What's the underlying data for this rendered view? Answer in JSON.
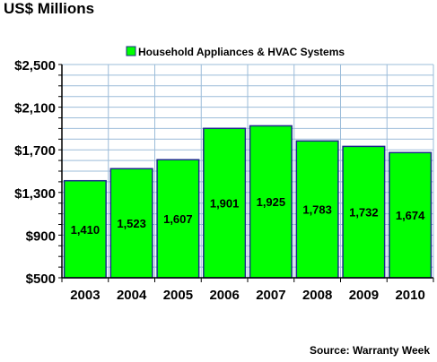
{
  "header": {
    "unit_label": "US$ Millions"
  },
  "footer": {
    "source": "Source: Warranty Week"
  },
  "colors": {
    "bar_fill": "#00ff00",
    "bar_stroke": "#1a2a8a",
    "plot_bg": "#ffffff",
    "grid": "#9bbcd9",
    "axis": "#000000"
  },
  "chart_data": {
    "type": "bar",
    "title": "",
    "xlabel": "",
    "ylabel": "US$ Millions",
    "categories": [
      "2003",
      "2004",
      "2005",
      "2006",
      "2007",
      "2008",
      "2009",
      "2010"
    ],
    "series": [
      {
        "name": "Household Appliances & HVAC Systems",
        "values": [
          1410,
          1523,
          1607,
          1901,
          1925,
          1783,
          1732,
          1674
        ],
        "value_labels": [
          "1,410",
          "1,523",
          "1,607",
          "1,901",
          "1,925",
          "1,783",
          "1,732",
          "1,674"
        ]
      }
    ],
    "ylim": [
      500,
      2500
    ],
    "yticks": [
      500,
      900,
      1300,
      1700,
      2100,
      2500
    ],
    "ytick_labels": [
      "$500",
      "$900",
      "$1,300",
      "$1,700",
      "$2,100",
      "$2,500"
    ],
    "grid_step": 100,
    "grid": true,
    "legend_position": "top-center"
  }
}
